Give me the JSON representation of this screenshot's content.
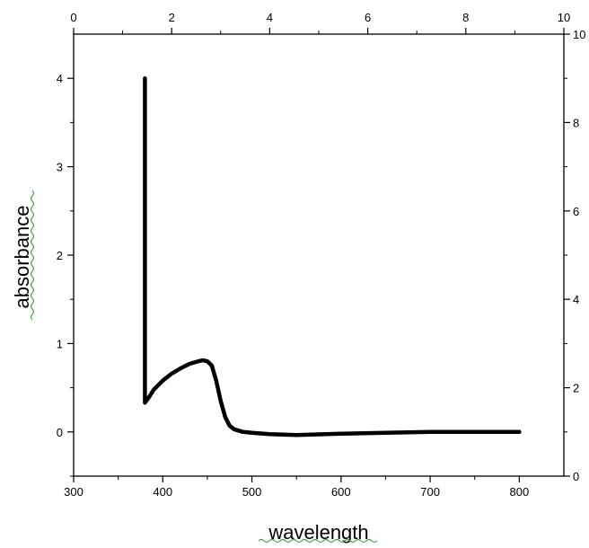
{
  "chart_data": {
    "type": "line",
    "xlabel": "wavelength",
    "ylabel": "absorbance",
    "xlim": [
      300,
      850
    ],
    "ylim": [
      -0.5,
      4.5
    ],
    "x_ticks": [
      "300",
      "400",
      "500",
      "600",
      "700",
      "800"
    ],
    "y_ticks": [
      "0",
      "1",
      "2",
      "3",
      "4"
    ],
    "top_x_ticks": [
      "0",
      "2",
      "4",
      "6",
      "8",
      "10"
    ],
    "right_y_ticks": [
      "0",
      "2",
      "4",
      "6",
      "8",
      "10"
    ],
    "top_xlim": [
      0,
      10
    ],
    "right_ylim": [
      0,
      10
    ],
    "grid": false,
    "line_color": "#000000",
    "series": [
      {
        "x": [
          380,
          380,
          380,
          380,
          385,
          390,
          400,
          410,
          420,
          430,
          440,
          445,
          450,
          455,
          460,
          465,
          470,
          475,
          480,
          490,
          500,
          520,
          550,
          600,
          650,
          700,
          750,
          800
        ],
        "values": [
          4.0,
          2.0,
          0.5,
          0.33,
          0.4,
          0.48,
          0.58,
          0.66,
          0.72,
          0.77,
          0.8,
          0.81,
          0.8,
          0.75,
          0.58,
          0.35,
          0.17,
          0.07,
          0.03,
          0.0,
          -0.01,
          -0.025,
          -0.035,
          -0.02,
          -0.01,
          0.0,
          0.0,
          0.0
        ]
      }
    ]
  }
}
